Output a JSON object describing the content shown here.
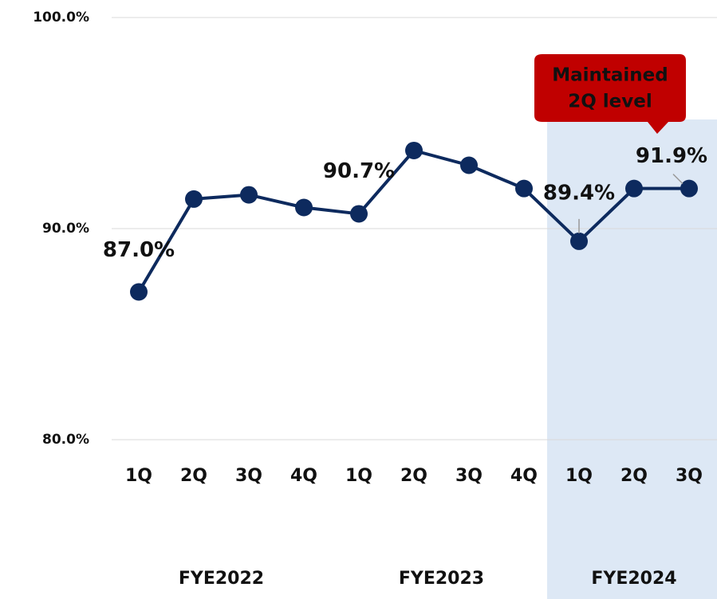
{
  "chart_data": {
    "type": "line",
    "categories": [
      "1Q",
      "2Q",
      "3Q",
      "4Q",
      "1Q",
      "2Q",
      "3Q",
      "4Q",
      "1Q",
      "2Q",
      "3Q"
    ],
    "groups": [
      {
        "name": "FYE2022",
        "count": 4
      },
      {
        "name": "FYE2023",
        "count": 4
      },
      {
        "name": "FYE2024",
        "count": 3
      }
    ],
    "series": [
      {
        "color": "#0d2a5e",
        "values": [
          87.0,
          91.4,
          91.6,
          91.0,
          90.7,
          93.7,
          93.0,
          91.9,
          89.4,
          91.9,
          91.9
        ],
        "value_labels": [
          "87.0%",
          null,
          null,
          null,
          "90.7%",
          null,
          null,
          null,
          "89.4%",
          null,
          "91.9%"
        ]
      }
    ],
    "ylim": [
      80,
      100
    ],
    "yticks": [
      {
        "value": 80,
        "label": "80.0%"
      },
      {
        "value": 90,
        "label": "90.0%"
      },
      {
        "value": 100,
        "label": "100.0%"
      }
    ],
    "grid": true,
    "highlight_color": "#dde8f5",
    "annotation": {
      "lines": [
        "Maintained",
        "2Q level"
      ],
      "color": "#c00000"
    }
  }
}
